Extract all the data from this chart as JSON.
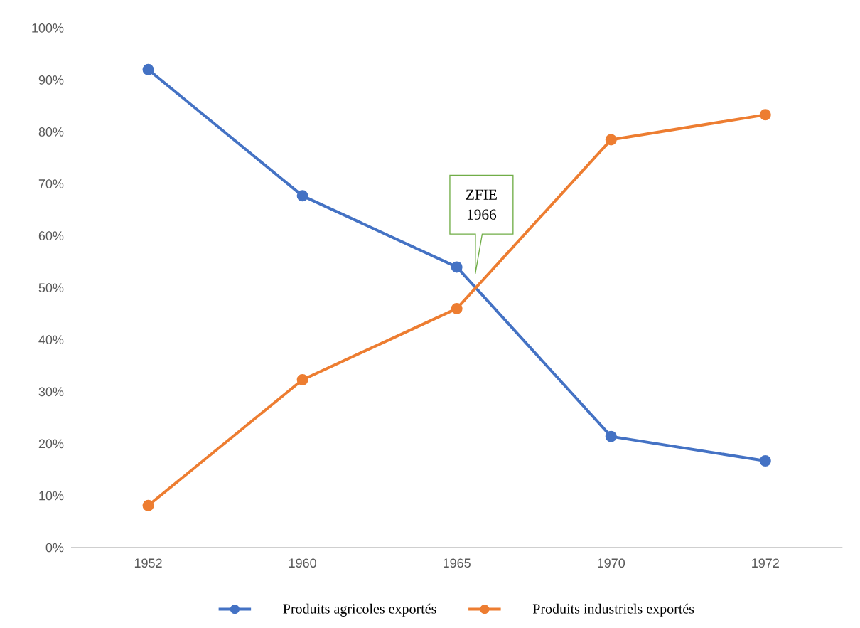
{
  "chart_data": {
    "type": "line",
    "categories": [
      "1952",
      "1960",
      "1965",
      "1970",
      "1972"
    ],
    "series": [
      {
        "name": "Produits agricoles exportés",
        "color": "#4472c4",
        "values": [
          92,
          67.7,
          54,
          21.4,
          16.7
        ]
      },
      {
        "name": "Produits industriels exportés",
        "color": "#ed7d31",
        "values": [
          8.1,
          32.3,
          46,
          78.5,
          83.3
        ]
      }
    ],
    "ylim": [
      0,
      100
    ],
    "yticks": [
      {
        "value": 0,
        "label": "0%"
      },
      {
        "value": 10,
        "label": "10%"
      },
      {
        "value": 20,
        "label": "20%"
      },
      {
        "value": 30,
        "label": "30%"
      },
      {
        "value": 40,
        "label": "40%"
      },
      {
        "value": 50,
        "label": "50%"
      },
      {
        "value": 60,
        "label": "60%"
      },
      {
        "value": 70,
        "label": "70%"
      },
      {
        "value": 80,
        "label": "80%"
      },
      {
        "value": 90,
        "label": "90%"
      },
      {
        "value": 100,
        "label": "100%"
      }
    ],
    "legend": "bottom",
    "marker": "circle",
    "annotations": [
      "ZFIE 1966"
    ]
  }
}
